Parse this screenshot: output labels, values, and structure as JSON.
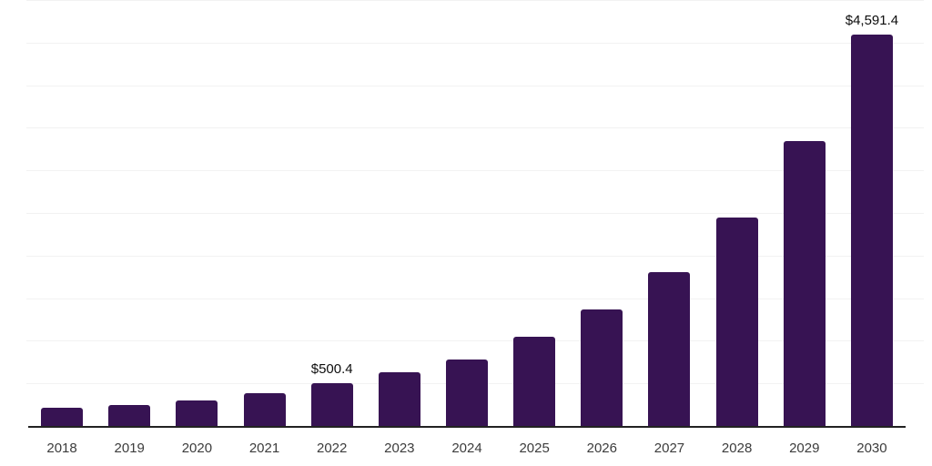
{
  "chart_data": {
    "type": "bar",
    "title": "",
    "xlabel": "",
    "ylabel": "",
    "categories": [
      "2018",
      "2019",
      "2020",
      "2021",
      "2022",
      "2023",
      "2024",
      "2025",
      "2026",
      "2027",
      "2028",
      "2029",
      "2030"
    ],
    "values": [
      210,
      245,
      300,
      380,
      500.4,
      635,
      785,
      1050,
      1365,
      1810,
      2450,
      3340,
      4591.4
    ],
    "annotations": [
      {
        "category": "2022",
        "text": "$500.4"
      },
      {
        "category": "2030",
        "text": "$4,591.4"
      }
    ],
    "ylim": [
      0,
      5000
    ],
    "gridline_step": 500,
    "grid": true,
    "legend": false,
    "y_axis_labels_visible": false,
    "colors": {
      "bar": "#371353",
      "gridline": "#f2f2f2",
      "axis_line": "#222222",
      "tick_label": "#3c3c3c",
      "annotation": "#0d0d0d",
      "background": "#ffffff"
    }
  }
}
